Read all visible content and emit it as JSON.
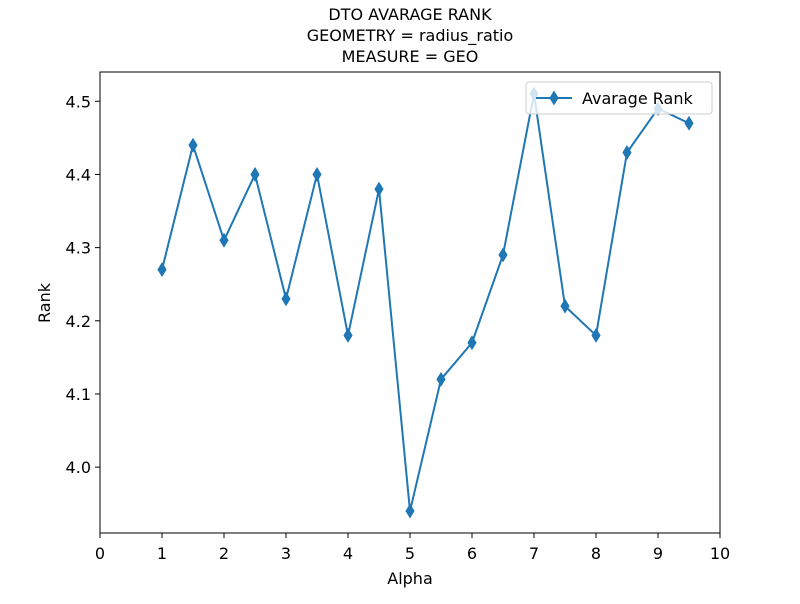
{
  "chart_data": {
    "type": "line",
    "title_lines": [
      "DTO AVARAGE RANK",
      "GEOMETRY = radius_ratio",
      "MEASURE = GEO"
    ],
    "xlabel": "Alpha",
    "ylabel": "Rank",
    "xlim": [
      0,
      10
    ],
    "ylim": [
      3.91,
      4.54
    ],
    "x_ticks": [
      "0",
      "1",
      "2",
      "3",
      "4",
      "5",
      "6",
      "7",
      "8",
      "9",
      "10"
    ],
    "y_ticks": [
      "4.0",
      "4.1",
      "4.2",
      "4.3",
      "4.4",
      "4.5"
    ],
    "grid": false,
    "legend_position": "top-right",
    "series": [
      {
        "name": "Avarage Rank",
        "color": "#1f77b4",
        "marker": "thin-diamond",
        "x": [
          1,
          1.5,
          2,
          2.5,
          3,
          3.5,
          4,
          4.5,
          5,
          5.5,
          6,
          6.5,
          7,
          7.5,
          8,
          8.5,
          9,
          9.5
        ],
        "y": [
          4.27,
          4.44,
          4.31,
          4.4,
          4.23,
          4.4,
          4.18,
          4.38,
          3.94,
          4.12,
          4.17,
          4.29,
          4.51,
          4.22,
          4.18,
          4.43,
          4.49,
          4.47
        ]
      }
    ]
  }
}
